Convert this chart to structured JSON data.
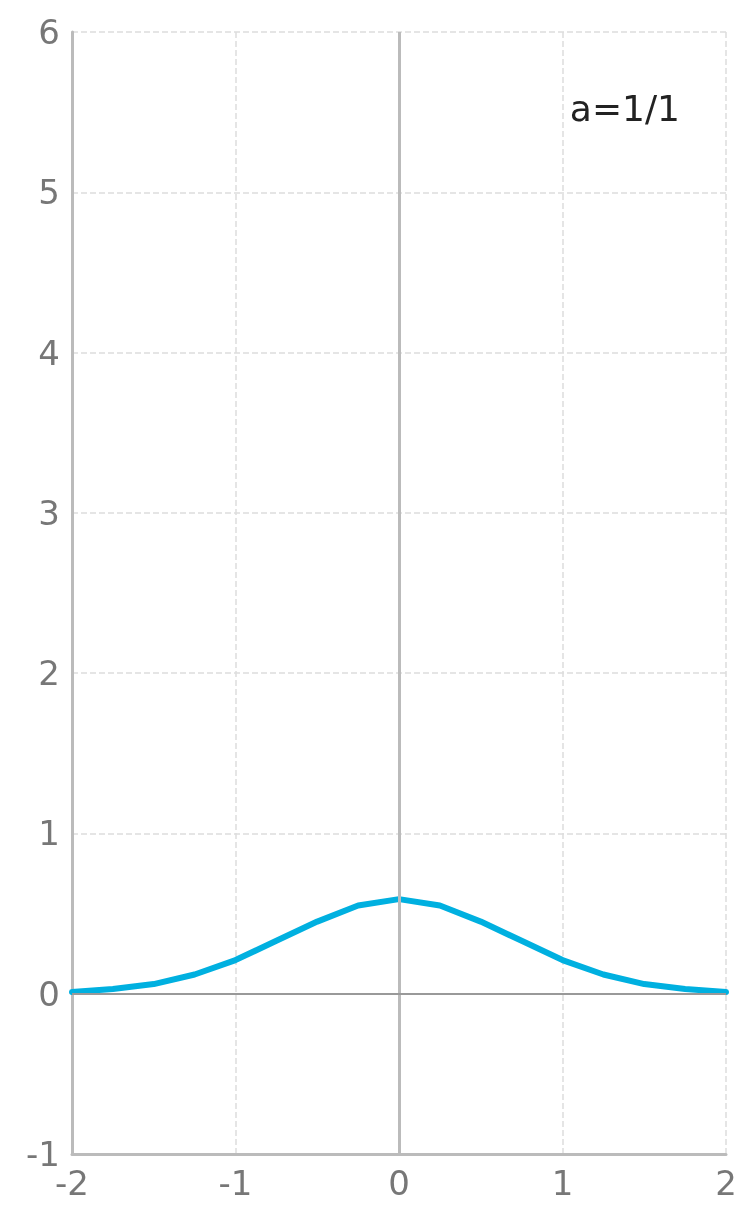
{
  "chart_data": {
    "type": "line",
    "x": [
      -2,
      -1.75,
      -1.5,
      -1.25,
      -1,
      -0.75,
      -0.5,
      -0.25,
      0,
      0.25,
      0.5,
      0.75,
      1,
      1.25,
      1.5,
      1.75,
      2
    ],
    "series": [
      {
        "color": "#00b0e0",
        "values": [
          0.01,
          0.03,
          0.06,
          0.12,
          0.21,
          0.33,
          0.45,
          0.55,
          0.59,
          0.55,
          0.45,
          0.33,
          0.21,
          0.12,
          0.06,
          0.03,
          0.01
        ]
      }
    ],
    "xlim": [
      -2,
      2
    ],
    "xticks": [
      -2,
      -1,
      0,
      1,
      2
    ],
    "ylim": [
      -1,
      6
    ],
    "yticks": [
      -1,
      0,
      1,
      2,
      3,
      4,
      5,
      6
    ],
    "grid": true,
    "marker": "none",
    "line_style": "solid",
    "ref_lines": [
      {
        "axis": "x",
        "value": 0,
        "color": "#bbbbbb"
      },
      {
        "axis": "y",
        "value": 0,
        "color": "#999999"
      }
    ],
    "annotations": [
      "a=1/1"
    ]
  }
}
